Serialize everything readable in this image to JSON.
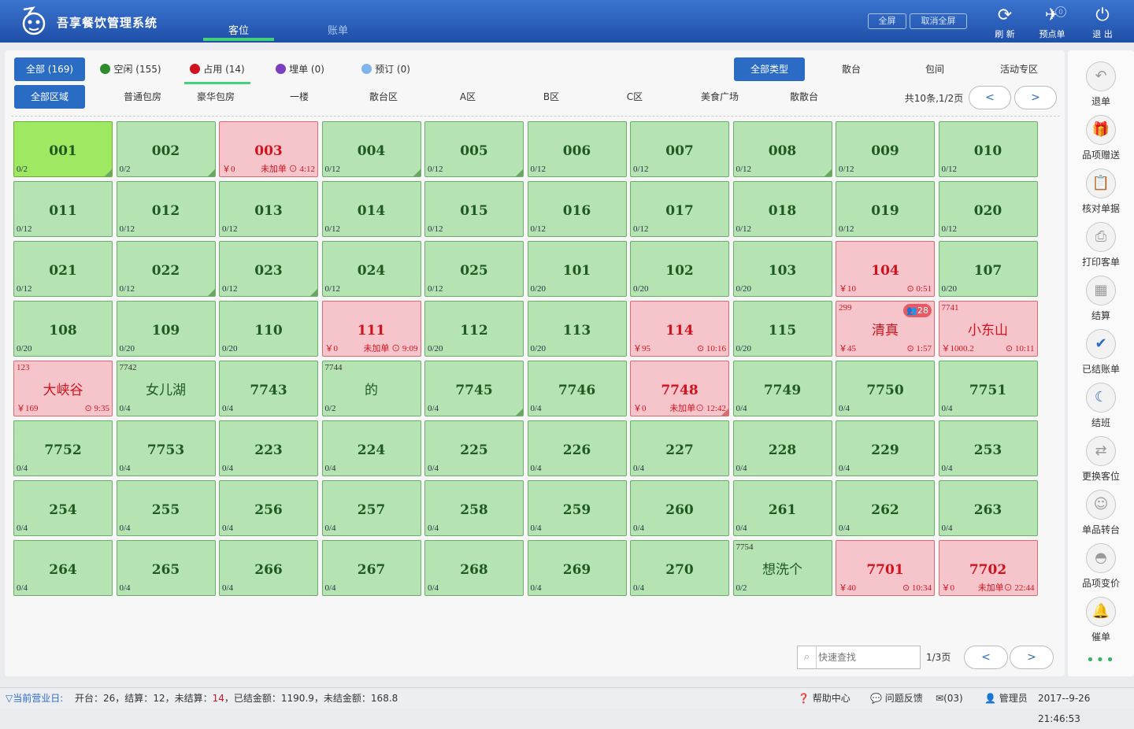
{
  "app": {
    "title": "吾享餐饮管理系统",
    "tabs": [
      {
        "label": "客位",
        "active": true
      },
      {
        "label": "账单",
        "active": false
      }
    ],
    "full_screen": "全屏",
    "exit_full_screen": "取消全屏",
    "actions": [
      {
        "label": "刷 新",
        "icon": "refresh-icon",
        "glyph": "⟳"
      },
      {
        "label": "预点单",
        "icon": "send-icon",
        "glyph": "✈"
      },
      {
        "label": "退 出",
        "icon": "power-icon",
        "glyph": "⏻"
      }
    ],
    "preorder_badge": "0"
  },
  "status_filters": [
    {
      "label": "全部 (169)",
      "active": true
    },
    {
      "label": "空闲 (155)",
      "color": "#2e8b2e"
    },
    {
      "label": "占用 (14)",
      "color": "#d0121c"
    },
    {
      "label": "埋单 (0)",
      "color": "#7b3fbf"
    },
    {
      "label": "预订 (0)",
      "color": "#7fb5ec"
    }
  ],
  "type_filters": [
    {
      "label": "全部类型",
      "active": true
    },
    {
      "label": "散台"
    },
    {
      "label": "包间"
    },
    {
      "label": "活动专区"
    }
  ],
  "area_filters": [
    {
      "label": "全部区域",
      "active": true
    },
    {
      "label": "普通包房"
    },
    {
      "label": "豪华包房"
    },
    {
      "label": "一楼"
    },
    {
      "label": "散台区"
    },
    {
      "label": "A区"
    },
    {
      "label": "B区"
    },
    {
      "label": "C区"
    },
    {
      "label": "美食广场"
    },
    {
      "label": "散散台"
    }
  ],
  "area_page": {
    "info": "共10条,1/2页",
    "prev": "<",
    "next": ">"
  },
  "tables": [
    {
      "name": "001",
      "count": "0/2",
      "highlight": true,
      "corner": true
    },
    {
      "name": "002",
      "count": "0/2",
      "corner": true
    },
    {
      "name": "003",
      "occupied": true,
      "amount": "￥0",
      "right": "未加单 ⊙ 4:12"
    },
    {
      "name": "004",
      "count": "0/12",
      "corner": true
    },
    {
      "name": "005",
      "count": "0/12",
      "corner": true
    },
    {
      "name": "006",
      "count": "0/12"
    },
    {
      "name": "007",
      "count": "0/12"
    },
    {
      "name": "008",
      "count": "0/12",
      "corner": true
    },
    {
      "name": "009",
      "count": "0/12"
    },
    {
      "name": "010",
      "count": "0/12"
    },
    {
      "name": "011",
      "count": "0/12"
    },
    {
      "name": "012",
      "count": "0/12"
    },
    {
      "name": "013",
      "count": "0/12"
    },
    {
      "name": "014",
      "count": "0/12"
    },
    {
      "name": "015",
      "count": "0/12"
    },
    {
      "name": "016",
      "count": "0/12"
    },
    {
      "name": "017",
      "count": "0/12"
    },
    {
      "name": "018",
      "count": "0/12"
    },
    {
      "name": "019",
      "count": "0/12"
    },
    {
      "name": "020",
      "count": "0/12"
    },
    {
      "name": "021",
      "count": "0/12"
    },
    {
      "name": "022",
      "count": "0/12",
      "corner": true
    },
    {
      "name": "023",
      "count": "0/12",
      "corner": true
    },
    {
      "name": "024",
      "count": "0/12"
    },
    {
      "name": "025",
      "count": "0/12"
    },
    {
      "name": "101",
      "count": "0/20"
    },
    {
      "name": "102",
      "count": "0/20"
    },
    {
      "name": "103",
      "count": "0/20"
    },
    {
      "name": "104",
      "occupied": true,
      "amount": "￥10",
      "right": "⊙ 0:51"
    },
    {
      "name": "107",
      "count": "0/20"
    },
    {
      "name": "108",
      "count": "0/20"
    },
    {
      "name": "109",
      "count": "0/20"
    },
    {
      "name": "110",
      "count": "0/20"
    },
    {
      "name": "111",
      "occupied": true,
      "amount": "￥0",
      "right": "未加单 ⊙ 9:09"
    },
    {
      "name": "112",
      "count": "0/20"
    },
    {
      "name": "113",
      "count": "0/20"
    },
    {
      "name": "114",
      "occupied": true,
      "amount": "￥95",
      "right": "⊙ 10:16"
    },
    {
      "name": "115",
      "count": "0/20"
    },
    {
      "name": "清真",
      "occupied": true,
      "code": "299",
      "badge": "28",
      "amount": "￥45",
      "right": "⊙ 1:57",
      "cn": true
    },
    {
      "name": "小东山",
      "occupied": true,
      "code": "7741",
      "amount": "￥1000.2",
      "right": "⊙ 10:11",
      "cn": true
    },
    {
      "name": "大峡谷",
      "occupied": true,
      "code": "123",
      "amount": "￥169",
      "right": "⊙ 9:35",
      "cn": true
    },
    {
      "name": "女儿湖",
      "code": "7742",
      "count": "0/4",
      "cn": true
    },
    {
      "name": "7743",
      "count": "0/4"
    },
    {
      "name": "的",
      "code": "7744",
      "count": "0/2",
      "cn": true
    },
    {
      "name": "7745",
      "count": "0/4",
      "corner": true
    },
    {
      "name": "7746",
      "count": "0/4"
    },
    {
      "name": "7748",
      "occupied": true,
      "amount": "￥0",
      "right": "未加单⊙ 12:42",
      "corner": true
    },
    {
      "name": "7749",
      "count": "0/4"
    },
    {
      "name": "7750",
      "count": "0/4"
    },
    {
      "name": "7751",
      "count": "0/4"
    },
    {
      "name": "7752",
      "count": "0/4"
    },
    {
      "name": "7753",
      "count": "0/4"
    },
    {
      "name": "223",
      "count": "0/4"
    },
    {
      "name": "224",
      "count": "0/4"
    },
    {
      "name": "225",
      "count": "0/4"
    },
    {
      "name": "226",
      "count": "0/4"
    },
    {
      "name": "227",
      "count": "0/4"
    },
    {
      "name": "228",
      "count": "0/4"
    },
    {
      "name": "229",
      "count": "0/4"
    },
    {
      "name": "253",
      "count": "0/4"
    },
    {
      "name": "254",
      "count": "0/4"
    },
    {
      "name": "255",
      "count": "0/4"
    },
    {
      "name": "256",
      "count": "0/4"
    },
    {
      "name": "257",
      "count": "0/4"
    },
    {
      "name": "258",
      "count": "0/4"
    },
    {
      "name": "259",
      "count": "0/4"
    },
    {
      "name": "260",
      "count": "0/4"
    },
    {
      "name": "261",
      "count": "0/4"
    },
    {
      "name": "262",
      "count": "0/4"
    },
    {
      "name": "263",
      "count": "0/4"
    },
    {
      "name": "264",
      "count": "0/4"
    },
    {
      "name": "265",
      "count": "0/4"
    },
    {
      "name": "266",
      "count": "0/4"
    },
    {
      "name": "267",
      "count": "0/4"
    },
    {
      "name": "268",
      "count": "0/4"
    },
    {
      "name": "269",
      "count": "0/4"
    },
    {
      "name": "270",
      "count": "0/4"
    },
    {
      "name": "想洗个",
      "code": "7754",
      "count": "0/2",
      "cn": true
    },
    {
      "name": "7701",
      "occupied": true,
      "amount": "￥40",
      "right": "⊙ 10:34"
    },
    {
      "name": "7702",
      "occupied": true,
      "amount": "￥0",
      "right": "未加单⊙ 22:44"
    }
  ],
  "search": {
    "placeholder": "快速查找",
    "page": "1/3页",
    "prev": "<",
    "next": ">"
  },
  "side_menu": [
    {
      "label": "退单",
      "icon": "undo-icon",
      "glyph": "↶"
    },
    {
      "label": "品项赠送",
      "icon": "gift-icon",
      "glyph": "🎁"
    },
    {
      "label": "核对单据",
      "icon": "clipboard-check-icon",
      "glyph": "📋"
    },
    {
      "label": "打印客单",
      "icon": "printer-icon",
      "glyph": "⎙"
    },
    {
      "label": "结算",
      "icon": "calculator-icon",
      "glyph": "▦"
    },
    {
      "label": "已结账单",
      "icon": "checked-bill-icon",
      "glyph": "✔",
      "blue": true
    },
    {
      "label": "结班",
      "icon": "moon-icon",
      "glyph": "☾",
      "blue": true
    },
    {
      "label": "更换客位",
      "icon": "swap-icon",
      "glyph": "⇄"
    },
    {
      "label": "单品转台",
      "icon": "transfer-icon",
      "glyph": "☺"
    },
    {
      "label": "品项变价",
      "icon": "cloche-icon",
      "glyph": "◓"
    },
    {
      "label": "催单",
      "icon": "bell-icon",
      "glyph": "🔔"
    }
  ],
  "more": "•••",
  "footer": {
    "business_day": "▽当前营业日:",
    "open_label": "开台：",
    "open": "26",
    "settled_label": "，结算：",
    "settled": "12",
    "unsettled_label": "，未结算：",
    "unsettled": "14",
    "settled_amt_label": "，已结金额：",
    "settled_amt": "1190.9",
    "unsettled_amt_label": "，未结金额：",
    "unsettled_amt": "168.8",
    "help": "帮助中心",
    "feedback": "问题反馈",
    "messages": "(03)",
    "user": "管理员",
    "datetime": "2017--9-26 21:46:53"
  }
}
